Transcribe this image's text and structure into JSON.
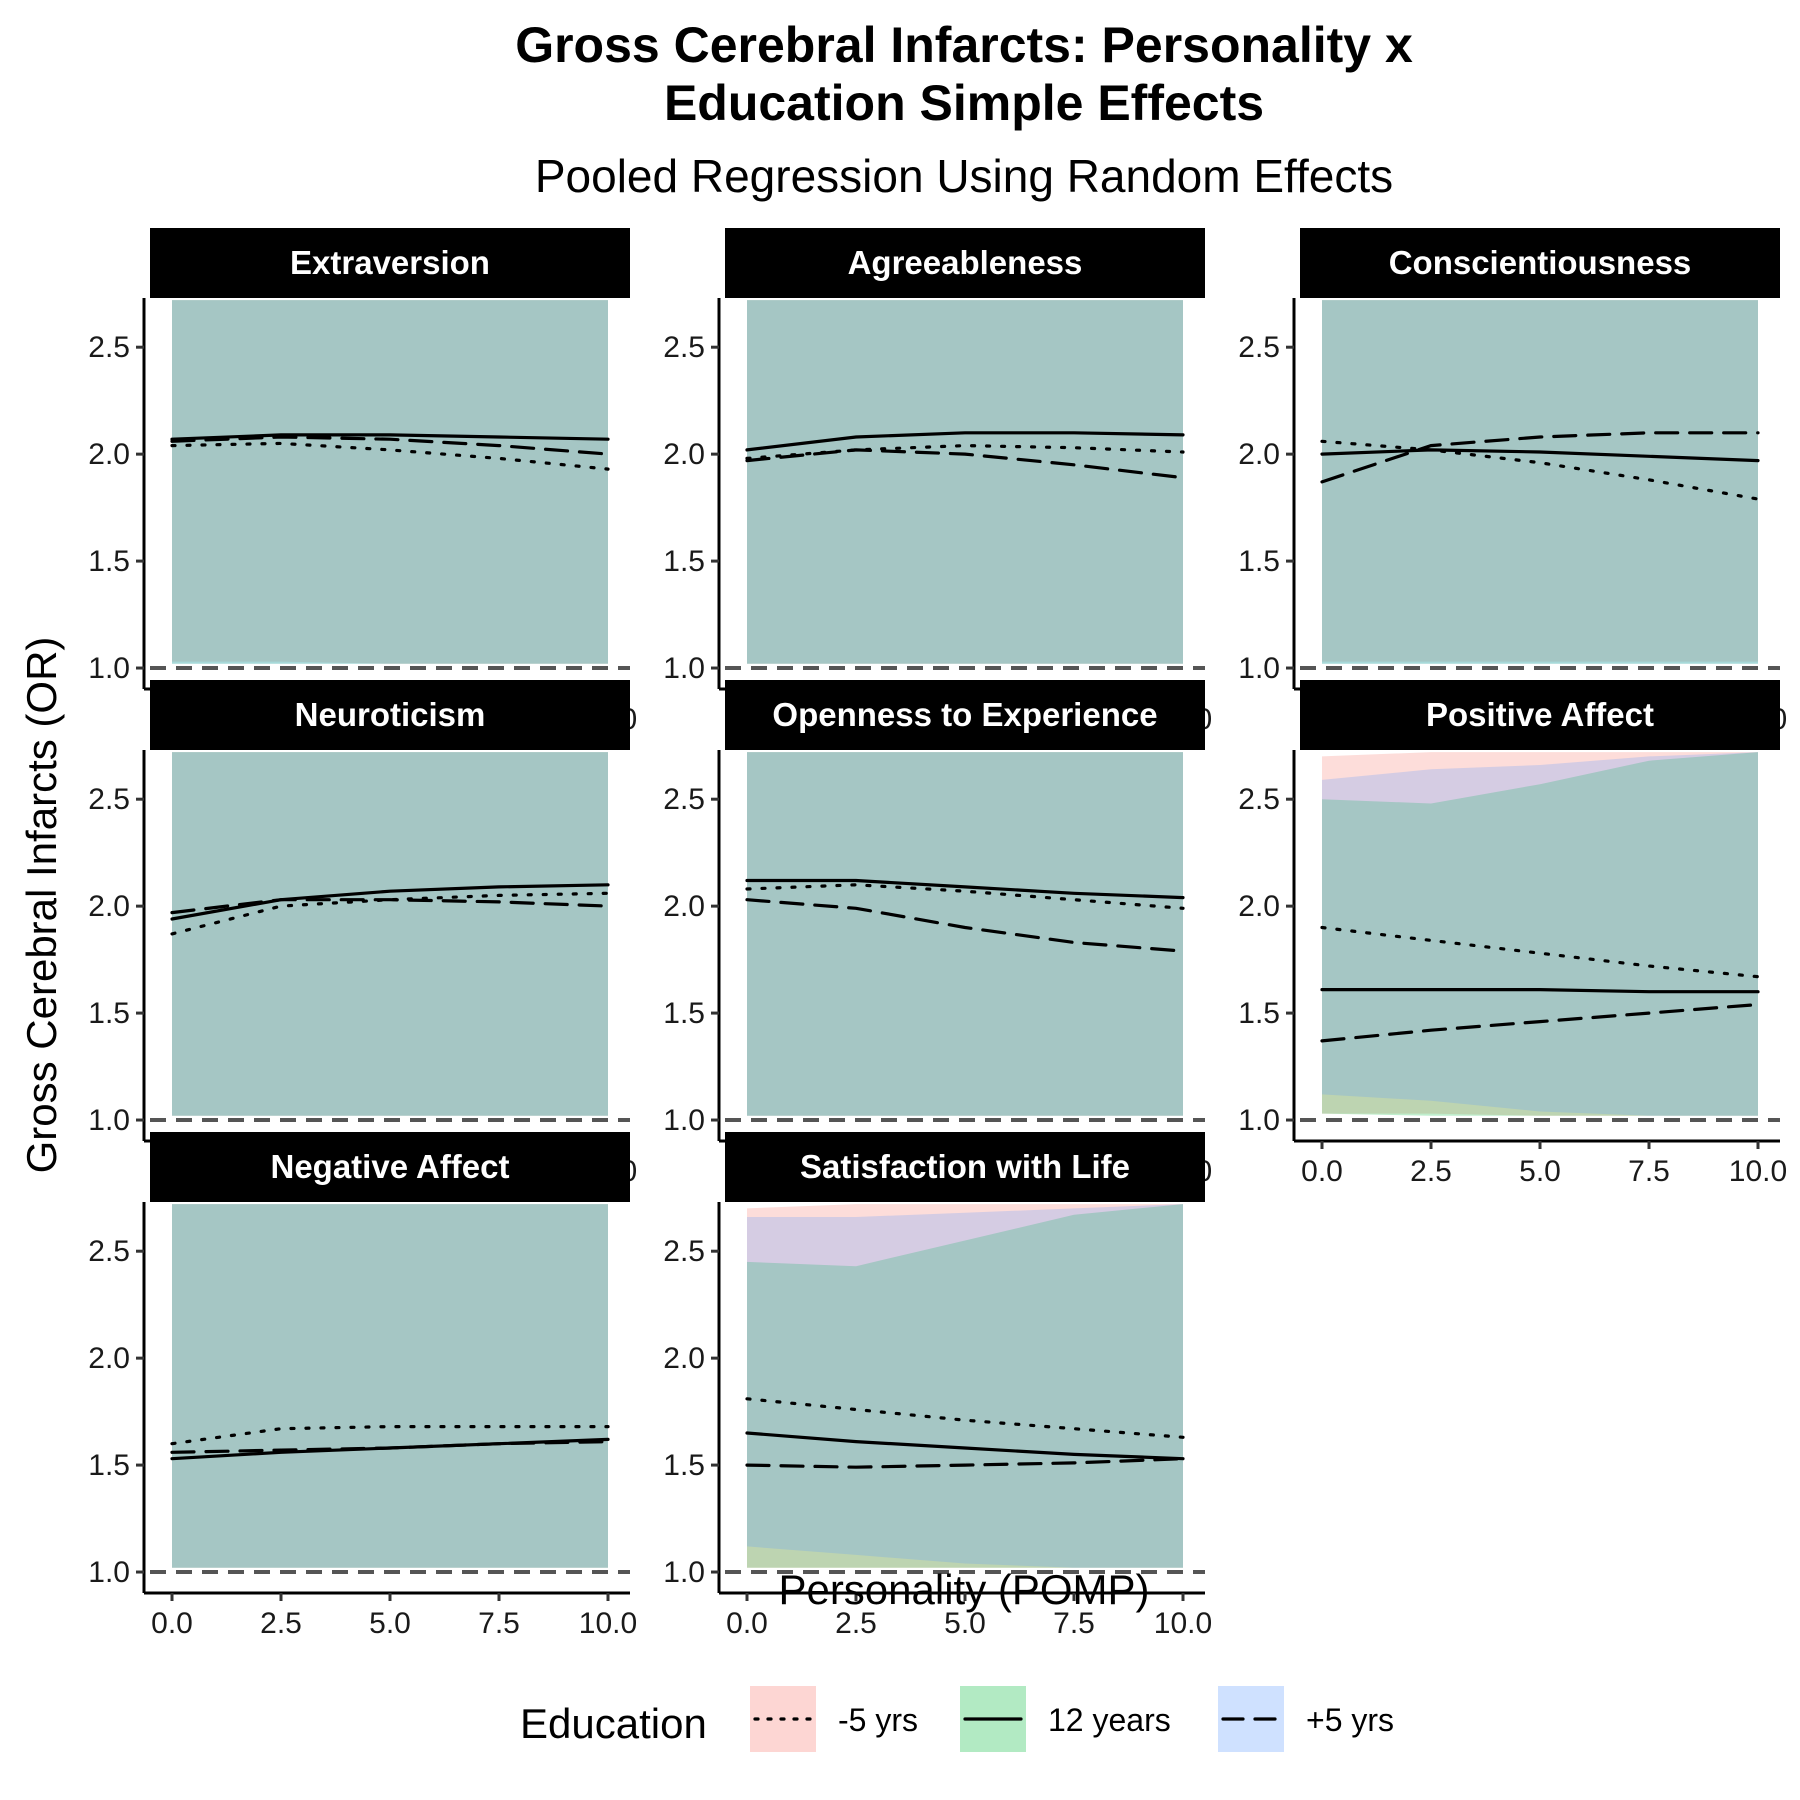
{
  "chart_data": {
    "type": "line",
    "title_lines": [
      "Gross Cerebral Infarcts: Personality x",
      "Education Simple Effects"
    ],
    "subtitle": "Pooled Regression Using Random Effects",
    "xlabel": "Personality (POMP)",
    "ylabel": "Gross Cerebral Infarcts (OR)",
    "xlim": [
      0,
      10
    ],
    "ylim": [
      0.93,
      2.73
    ],
    "xticks": [
      "0.0",
      "2.5",
      "5.0",
      "7.5",
      "10.0"
    ],
    "yticks": [
      "1.0",
      "1.5",
      "2.0",
      "2.5"
    ],
    "reference_line": 1.0,
    "grid": false,
    "legend": {
      "title": "Education",
      "position": "bottom",
      "entries": [
        {
          "label": "-5 yrs",
          "linetype": "dotted",
          "fill": "#F8766D"
        },
        {
          "label": "12 years",
          "linetype": "solid",
          "fill": "#00BA38"
        },
        {
          "label": "+5 yrs",
          "linetype": "dashed",
          "fill": "#619CFF"
        }
      ]
    },
    "x": [
      0,
      2.5,
      5,
      7.5,
      10
    ],
    "panels": [
      {
        "name": "Extraversion",
        "series": [
          {
            "name": "-5 yrs",
            "values": [
              2.04,
              2.05,
              2.02,
              1.98,
              1.93
            ]
          },
          {
            "name": "12 years",
            "values": [
              2.07,
              2.09,
              2.09,
              2.08,
              2.07
            ]
          },
          {
            "name": "+5 yrs",
            "values": [
              2.06,
              2.08,
              2.07,
              2.04,
              2.0
            ]
          }
        ],
        "ribbons": [
          {
            "name": "-5 yrs",
            "lower": [
              1.03,
              1.03,
              1.02,
              1.02,
              1.02
            ],
            "upper": [
              2.72,
              2.72,
              2.72,
              2.72,
              2.72
            ]
          },
          {
            "name": "12 years",
            "lower": [
              1.02,
              1.02,
              1.02,
              1.02,
              1.02
            ],
            "upper": [
              2.72,
              2.72,
              2.72,
              2.72,
              2.72
            ]
          },
          {
            "name": "+5 yrs",
            "lower": [
              1.02,
              1.02,
              1.02,
              1.02,
              1.02
            ],
            "upper": [
              2.72,
              2.72,
              2.72,
              2.72,
              2.72
            ]
          }
        ]
      },
      {
        "name": "Agreeableness",
        "series": [
          {
            "name": "-5 yrs",
            "values": [
              1.98,
              2.02,
              2.04,
              2.03,
              2.01
            ]
          },
          {
            "name": "12 years",
            "values": [
              2.02,
              2.08,
              2.1,
              2.1,
              2.09
            ]
          },
          {
            "name": "+5 yrs",
            "values": [
              1.97,
              2.02,
              2.0,
              1.95,
              1.89
            ]
          }
        ],
        "ribbons": [
          {
            "name": "-5 yrs",
            "lower": [
              1.02,
              1.02,
              1.02,
              1.02,
              1.02
            ],
            "upper": [
              2.72,
              2.72,
              2.72,
              2.72,
              2.72
            ]
          },
          {
            "name": "12 years",
            "lower": [
              1.02,
              1.02,
              1.02,
              1.02,
              1.02
            ],
            "upper": [
              2.72,
              2.72,
              2.72,
              2.72,
              2.72
            ]
          },
          {
            "name": "+5 yrs",
            "lower": [
              1.02,
              1.02,
              1.02,
              1.02,
              1.02
            ],
            "upper": [
              2.72,
              2.72,
              2.72,
              2.72,
              2.72
            ]
          }
        ]
      },
      {
        "name": "Conscientiousness",
        "series": [
          {
            "name": "-5 yrs",
            "values": [
              2.06,
              2.02,
              1.96,
              1.88,
              1.79
            ]
          },
          {
            "name": "12 years",
            "values": [
              2.0,
              2.02,
              2.01,
              1.99,
              1.97
            ]
          },
          {
            "name": "+5 yrs",
            "values": [
              1.87,
              2.04,
              2.08,
              2.1,
              2.1
            ]
          }
        ],
        "ribbons": [
          {
            "name": "-5 yrs",
            "lower": [
              1.03,
              1.03,
              1.03,
              1.03,
              1.03
            ],
            "upper": [
              2.72,
              2.72,
              2.72,
              2.72,
              2.72
            ]
          },
          {
            "name": "12 years",
            "lower": [
              1.02,
              1.02,
              1.02,
              1.02,
              1.02
            ],
            "upper": [
              2.72,
              2.72,
              2.72,
              2.72,
              2.72
            ]
          },
          {
            "name": "+5 yrs",
            "lower": [
              1.02,
              1.02,
              1.02,
              1.02,
              1.02
            ],
            "upper": [
              2.72,
              2.72,
              2.72,
              2.72,
              2.72
            ]
          }
        ]
      },
      {
        "name": "Neuroticism",
        "series": [
          {
            "name": "-5 yrs",
            "values": [
              1.87,
              2.0,
              2.03,
              2.05,
              2.06
            ]
          },
          {
            "name": "12 years",
            "values": [
              1.94,
              2.03,
              2.07,
              2.09,
              2.1
            ]
          },
          {
            "name": "+5 yrs",
            "values": [
              1.97,
              2.03,
              2.03,
              2.02,
              2.0
            ]
          }
        ],
        "ribbons": [
          {
            "name": "-5 yrs",
            "lower": [
              1.02,
              1.02,
              1.02,
              1.02,
              1.02
            ],
            "upper": [
              2.72,
              2.72,
              2.72,
              2.72,
              2.72
            ]
          },
          {
            "name": "12 years",
            "lower": [
              1.02,
              1.02,
              1.02,
              1.02,
              1.02
            ],
            "upper": [
              2.72,
              2.72,
              2.72,
              2.72,
              2.72
            ]
          },
          {
            "name": "+5 yrs",
            "lower": [
              1.02,
              1.02,
              1.02,
              1.02,
              1.02
            ],
            "upper": [
              2.72,
              2.72,
              2.72,
              2.72,
              2.72
            ]
          }
        ]
      },
      {
        "name": "Openness to Experience",
        "series": [
          {
            "name": "-5 yrs",
            "values": [
              2.08,
              2.1,
              2.07,
              2.03,
              1.99
            ]
          },
          {
            "name": "12 years",
            "values": [
              2.12,
              2.12,
              2.09,
              2.06,
              2.04
            ]
          },
          {
            "name": "+5 yrs",
            "values": [
              2.03,
              1.99,
              1.9,
              1.83,
              1.79
            ]
          }
        ],
        "ribbons": [
          {
            "name": "-5 yrs",
            "lower": [
              1.02,
              1.02,
              1.02,
              1.02,
              1.02
            ],
            "upper": [
              2.72,
              2.72,
              2.72,
              2.72,
              2.72
            ]
          },
          {
            "name": "12 years",
            "lower": [
              1.02,
              1.02,
              1.02,
              1.02,
              1.02
            ],
            "upper": [
              2.72,
              2.72,
              2.72,
              2.72,
              2.72
            ]
          },
          {
            "name": "+5 yrs",
            "lower": [
              1.02,
              1.02,
              1.02,
              1.02,
              1.02
            ],
            "upper": [
              2.72,
              2.72,
              2.72,
              2.72,
              2.72
            ]
          }
        ]
      },
      {
        "name": "Positive Affect",
        "series": [
          {
            "name": "-5 yrs",
            "values": [
              1.9,
              1.84,
              1.78,
              1.72,
              1.67
            ]
          },
          {
            "name": "12 years",
            "values": [
              1.61,
              1.61,
              1.61,
              1.6,
              1.6
            ]
          },
          {
            "name": "+5 yrs",
            "values": [
              1.37,
              1.42,
              1.46,
              1.5,
              1.54
            ]
          }
        ],
        "ribbons": [
          {
            "name": "-5 yrs",
            "lower": [
              1.03,
              1.03,
              1.02,
              1.02,
              1.02
            ],
            "upper": [
              2.7,
              2.72,
              2.72,
              2.72,
              2.72
            ]
          },
          {
            "name": "12 years",
            "lower": [
              1.03,
              1.02,
              1.02,
              1.02,
              1.02
            ],
            "upper": [
              2.5,
              2.48,
              2.57,
              2.68,
              2.72
            ]
          },
          {
            "name": "+5 yrs",
            "lower": [
              1.12,
              1.09,
              1.04,
              1.02,
              1.02
            ],
            "upper": [
              2.59,
              2.64,
              2.66,
              2.7,
              2.72
            ]
          }
        ]
      },
      {
        "name": "Negative Affect",
        "series": [
          {
            "name": "-5 yrs",
            "values": [
              1.6,
              1.67,
              1.68,
              1.68,
              1.68
            ]
          },
          {
            "name": "12 years",
            "values": [
              1.53,
              1.56,
              1.58,
              1.6,
              1.62
            ]
          },
          {
            "name": "+5 yrs",
            "values": [
              1.56,
              1.57,
              1.58,
              1.6,
              1.61
            ]
          }
        ],
        "ribbons": [
          {
            "name": "-5 yrs",
            "lower": [
              1.02,
              1.02,
              1.02,
              1.02,
              1.02
            ],
            "upper": [
              2.72,
              2.72,
              2.72,
              2.72,
              2.72
            ]
          },
          {
            "name": "12 years",
            "lower": [
              1.02,
              1.02,
              1.02,
              1.02,
              1.02
            ],
            "upper": [
              2.72,
              2.72,
              2.72,
              2.72,
              2.72
            ]
          },
          {
            "name": "+5 yrs",
            "lower": [
              1.02,
              1.02,
              1.02,
              1.02,
              1.02
            ],
            "upper": [
              2.72,
              2.72,
              2.72,
              2.72,
              2.72
            ]
          }
        ]
      },
      {
        "name": "Satisfaction with Life",
        "series": [
          {
            "name": "-5 yrs",
            "values": [
              1.81,
              1.76,
              1.71,
              1.67,
              1.63
            ]
          },
          {
            "name": "12 years",
            "values": [
              1.65,
              1.61,
              1.58,
              1.55,
              1.53
            ]
          },
          {
            "name": "+5 yrs",
            "values": [
              1.5,
              1.49,
              1.5,
              1.51,
              1.53
            ]
          }
        ],
        "ribbons": [
          {
            "name": "-5 yrs",
            "lower": [
              1.02,
              1.02,
              1.02,
              1.02,
              1.02
            ],
            "upper": [
              2.7,
              2.72,
              2.72,
              2.72,
              2.72
            ]
          },
          {
            "name": "12 years",
            "lower": [
              1.02,
              1.02,
              1.02,
              1.02,
              1.02
            ],
            "upper": [
              2.45,
              2.43,
              2.55,
              2.67,
              2.72
            ]
          },
          {
            "name": "+5 yrs",
            "lower": [
              1.12,
              1.08,
              1.04,
              1.02,
              1.02
            ],
            "upper": [
              2.66,
              2.66,
              2.68,
              2.7,
              2.72
            ]
          }
        ]
      }
    ]
  }
}
